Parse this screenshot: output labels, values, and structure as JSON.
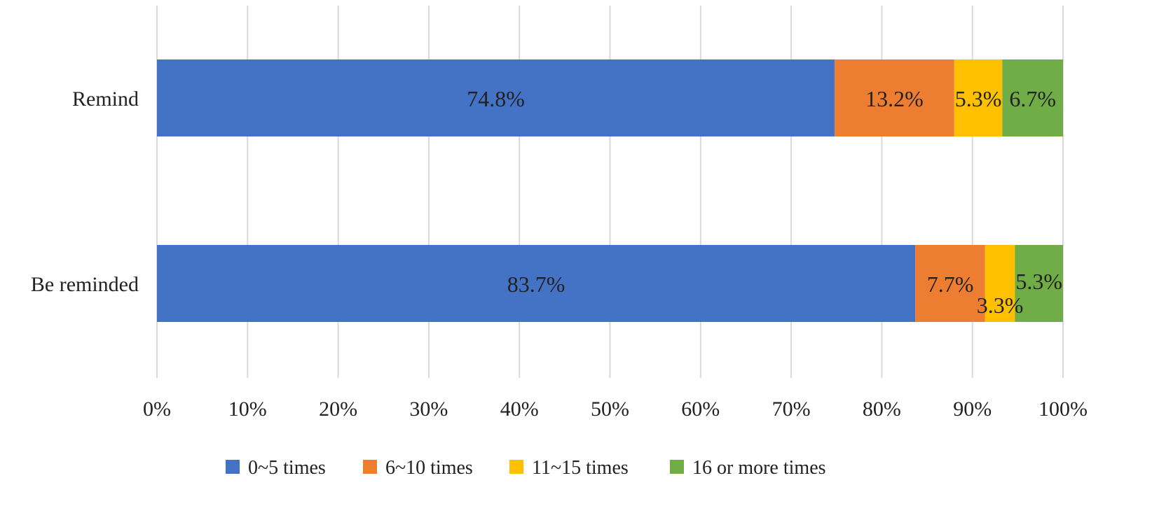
{
  "chart_data": {
    "type": "bar",
    "orientation": "horizontal",
    "stacked": true,
    "title": "",
    "xlabel": "",
    "ylabel": "",
    "categories": [
      "Remind",
      "Be reminded"
    ],
    "series": [
      {
        "name": "0~5 times",
        "color": "#4472C4",
        "values": [
          74.8,
          83.7
        ],
        "labels": [
          "74.8%",
          "83.7%"
        ]
      },
      {
        "name": "6~10 times",
        "color": "#ED7D31",
        "values": [
          13.2,
          7.7
        ],
        "labels": [
          "13.2%",
          "7.7%"
        ]
      },
      {
        "name": "11~15 times",
        "color": "#FFC000",
        "values": [
          5.3,
          3.3
        ],
        "labels": [
          "5.3%",
          "3.3%"
        ]
      },
      {
        "name": "16 or more times",
        "color": "#70AD47",
        "values": [
          6.7,
          5.3
        ],
        "labels": [
          "6.7%",
          "5.3%"
        ]
      }
    ],
    "xlim": [
      0,
      100
    ],
    "x_ticks": [
      "0%",
      "10%",
      "20%",
      "30%",
      "40%",
      "50%",
      "60%",
      "70%",
      "80%",
      "90%",
      "100%"
    ],
    "grid": "vertical",
    "legend": "bottom"
  }
}
